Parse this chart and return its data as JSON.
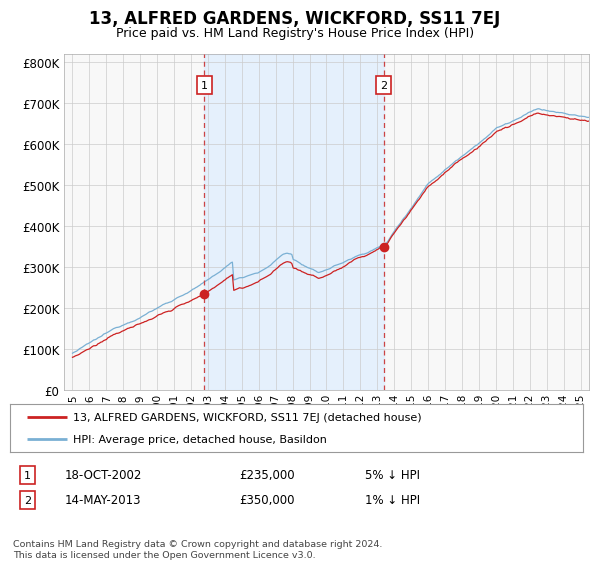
{
  "title": "13, ALFRED GARDENS, WICKFORD, SS11 7EJ",
  "subtitle": "Price paid vs. HM Land Registry's House Price Index (HPI)",
  "legend_line1": "13, ALFRED GARDENS, WICKFORD, SS11 7EJ (detached house)",
  "legend_line2": "HPI: Average price, detached house, Basildon",
  "transaction1_date": "18-OCT-2002",
  "transaction1_price": 235000,
  "transaction1_note": "5% ↓ HPI",
  "transaction1_year": 2002.79,
  "transaction2_date": "14-MAY-2013",
  "transaction2_price": 350000,
  "transaction2_note": "1% ↓ HPI",
  "transaction2_year": 2013.37,
  "footer": "Contains HM Land Registry data © Crown copyright and database right 2024.\nThis data is licensed under the Open Government Licence v3.0.",
  "ylim": [
    0,
    820000
  ],
  "yticks": [
    0,
    100000,
    200000,
    300000,
    400000,
    500000,
    600000,
    700000,
    800000
  ],
  "bg_color": "#ffffff",
  "plot_bg": "#f5f5f5",
  "shaded_color": "#ddeeff",
  "grid_color": "#cccccc",
  "hpi_color": "#7ab0d4",
  "price_color": "#cc2222",
  "dashed_color": "#cc4444",
  "box_edge_color": "#cc2222",
  "xmin": 1994.5,
  "xmax": 2025.5
}
